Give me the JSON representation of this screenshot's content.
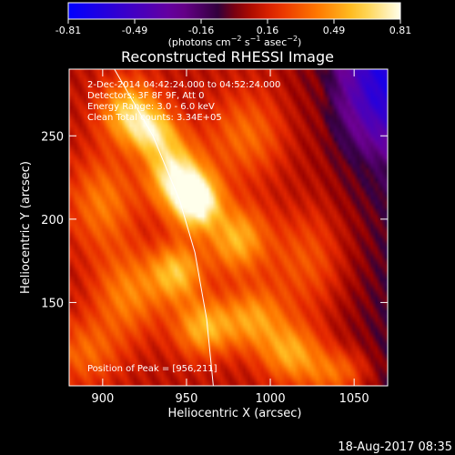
{
  "colorbar": {
    "ticks": [
      "-0.81",
      "-0.49",
      "-0.16",
      "0.16",
      "0.49",
      "0.81"
    ],
    "units_main": "(photons cm",
    "units_exp1": "−2",
    "units_mid": " s",
    "units_exp2": "−1",
    "units_tail": " asec",
    "units_exp3": "−2",
    "units_close": ")"
  },
  "annotations": {
    "time": "2-Dec-2014 04:42:24.000 to 04:52:24.000",
    "detectors": "Detectors: 3F 8F 9F, Att 0",
    "energy": "Energy Range: 3.0 - 6.0 keV",
    "clean": "Clean    Total counts: 3.34E+05",
    "peak": "Position of Peak = [956,211]"
  },
  "footer": {
    "timestamp": "18-Aug-2017 08:35"
  },
  "chart_data": {
    "type": "heatmap",
    "title": "Reconstructed RHESSI Image",
    "xlabel": "Heliocentric X (arcsec)",
    "ylabel": "Heliocentric Y (arcsec)",
    "xlim": [
      880,
      1070
    ],
    "ylim": [
      100,
      290
    ],
    "xticks": [
      900,
      950,
      1000,
      1050
    ],
    "yticks": [
      150,
      200,
      250
    ],
    "colorbar_range": [
      -0.81,
      0.81
    ],
    "peak": [
      956,
      211
    ],
    "limb_curve": [
      [
        907,
        290
      ],
      [
        930,
        250
      ],
      [
        946,
        211
      ],
      [
        955,
        180
      ],
      [
        962,
        140
      ],
      [
        966,
        100
      ]
    ],
    "blobs": [
      {
        "x": 956,
        "y": 211,
        "value": 0.81,
        "sx": 10,
        "sy": 12
      },
      {
        "x": 942,
        "y": 228,
        "value": 0.62,
        "sx": 11,
        "sy": 14
      },
      {
        "x": 916,
        "y": 265,
        "value": 0.52,
        "sx": 12,
        "sy": 13
      },
      {
        "x": 930,
        "y": 252,
        "value": 0.45,
        "sx": 10,
        "sy": 10
      },
      {
        "x": 980,
        "y": 188,
        "value": 0.45,
        "sx": 12,
        "sy": 14
      },
      {
        "x": 944,
        "y": 168,
        "value": 0.48,
        "sx": 11,
        "sy": 12
      },
      {
        "x": 915,
        "y": 155,
        "value": 0.32,
        "sx": 14,
        "sy": 18
      },
      {
        "x": 960,
        "y": 135,
        "value": 0.45,
        "sx": 12,
        "sy": 12
      },
      {
        "x": 990,
        "y": 140,
        "value": 0.38,
        "sx": 13,
        "sy": 13
      },
      {
        "x": 1012,
        "y": 120,
        "value": 0.4,
        "sx": 12,
        "sy": 12
      },
      {
        "x": 1040,
        "y": 108,
        "value": 0.3,
        "sx": 14,
        "sy": 10
      },
      {
        "x": 985,
        "y": 250,
        "value": 0.26,
        "sx": 16,
        "sy": 18
      },
      {
        "x": 1020,
        "y": 175,
        "value": 0.2,
        "sx": 16,
        "sy": 20
      },
      {
        "x": 900,
        "y": 210,
        "value": 0.3,
        "sx": 14,
        "sy": 20
      },
      {
        "x": 890,
        "y": 120,
        "value": 0.25,
        "sx": 14,
        "sy": 14
      }
    ],
    "background": {
      "base": 0.05,
      "gradient_x": 0.0022,
      "gradient_y": 0.002,
      "center": [
        960,
        195
      ]
    }
  }
}
